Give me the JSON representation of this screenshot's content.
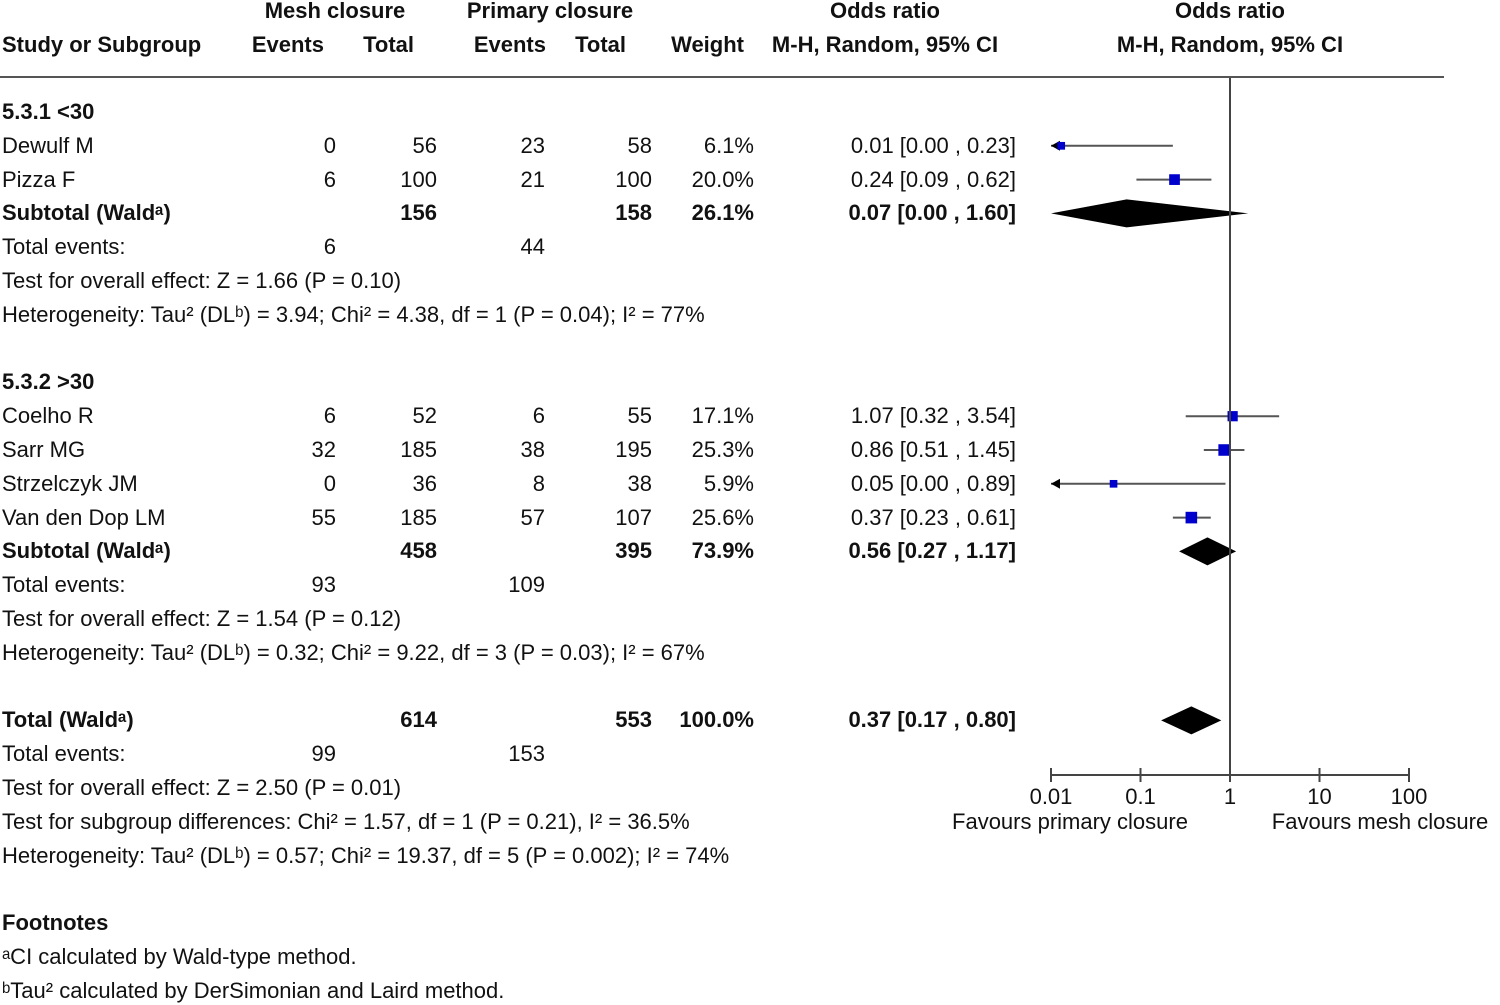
{
  "headers": {
    "study": "Study or Subgroup",
    "mesh_group": "Mesh closure",
    "primary_group": "Primary closure",
    "events": "Events",
    "total": "Total",
    "weight": "Weight",
    "or_title": "Odds ratio",
    "or_method": "M-H, Random, 95% CI",
    "plot_title": "Odds ratio",
    "plot_method": "M-H, Random, 95% CI"
  },
  "groups": [
    {
      "label": "5.3.1 <30",
      "studies": [
        {
          "name": "Dewulf M",
          "e1": "0",
          "n1": "56",
          "e2": "23",
          "n2": "58",
          "weight": "6.1%",
          "ci_text": "0.01 [0.00 , 0.23]",
          "or": 0.013,
          "lo": 0.0,
          "hi": 0.23,
          "w": 6.1
        },
        {
          "name": "Pizza F",
          "e1": "6",
          "n1": "100",
          "e2": "21",
          "n2": "100",
          "weight": "20.0%",
          "ci_text": "0.24 [0.09 , 0.62]",
          "or": 0.24,
          "lo": 0.09,
          "hi": 0.62,
          "w": 20.0
        }
      ],
      "subtotal": {
        "label": "Subtotal (Waldᵃ)",
        "n1": "156",
        "n2": "158",
        "weight": "26.1%",
        "ci_text": "0.07 [0.00 , 1.60]",
        "or": 0.07,
        "lo": 0.0,
        "hi": 1.6
      },
      "total_events": {
        "label": "Total events:",
        "e1": "6",
        "e2": "44"
      },
      "overall_effect": "Test for overall effect: Z = 1.66 (P = 0.10)",
      "heterogeneity": "Heterogeneity: Tau² (DLᵇ) = 3.94; Chi² = 4.38, df = 1 (P = 0.04); I² = 77%"
    },
    {
      "label": "5.3.2 >30",
      "studies": [
        {
          "name": "Coelho R",
          "e1": "6",
          "n1": "52",
          "e2": "6",
          "n2": "55",
          "weight": "17.1%",
          "ci_text": "1.07 [0.32 , 3.54]",
          "or": 1.07,
          "lo": 0.32,
          "hi": 3.54,
          "w": 17.1
        },
        {
          "name": "Sarr MG",
          "e1": "32",
          "n1": "185",
          "e2": "38",
          "n2": "195",
          "weight": "25.3%",
          "ci_text": "0.86 [0.51 , 1.45]",
          "or": 0.86,
          "lo": 0.51,
          "hi": 1.45,
          "w": 25.3
        },
        {
          "name": "Strzelczyk JM",
          "e1": "0",
          "n1": "36",
          "e2": "8",
          "n2": "38",
          "weight": "5.9%",
          "ci_text": "0.05 [0.00 , 0.89]",
          "or": 0.05,
          "lo": 0.0,
          "hi": 0.89,
          "w": 5.9
        },
        {
          "name": "Van den Dop LM",
          "e1": "55",
          "n1": "185",
          "e2": "57",
          "n2": "107",
          "weight": "25.6%",
          "ci_text": "0.37 [0.23 , 0.61]",
          "or": 0.37,
          "lo": 0.23,
          "hi": 0.61,
          "w": 25.6
        }
      ],
      "subtotal": {
        "label": "Subtotal (Waldᵃ)",
        "n1": "458",
        "n2": "395",
        "weight": "73.9%",
        "ci_text": "0.56 [0.27 , 1.17]",
        "or": 0.56,
        "lo": 0.27,
        "hi": 1.17
      },
      "total_events": {
        "label": "Total events:",
        "e1": "93",
        "e2": "109"
      },
      "overall_effect": "Test for overall effect: Z = 1.54 (P = 0.12)",
      "heterogeneity": "Heterogeneity: Tau² (DLᵇ) = 0.32; Chi² = 9.22, df = 3 (P = 0.03); I² = 67%"
    }
  ],
  "total": {
    "label": "Total (Waldᵃ)",
    "n1": "614",
    "n2": "553",
    "weight": "100.0%",
    "ci_text": "0.37 [0.17 , 0.80]",
    "or": 0.37,
    "lo": 0.17,
    "hi": 0.8,
    "total_events": {
      "label": "Total events:",
      "e1": "99",
      "e2": "153"
    },
    "overall_effect": "Test for overall effect: Z = 2.50 (P = 0.01)",
    "subgroup_diff": "Test for subgroup differences: Chi² = 1.57, df = 1 (P = 0.21), I² = 36.5%",
    "heterogeneity": "Heterogeneity: Tau² (DLᵇ) = 0.57; Chi² = 19.37, df = 5 (P = 0.002); I² = 74%"
  },
  "footnotes": {
    "title": "Footnotes",
    "items": [
      "ᵃCI calculated by Wald-type method.",
      "ᵇTau² calculated by DerSimonian and Laird method."
    ]
  },
  "chart_data": {
    "type": "forest",
    "x_scale": "log",
    "xlim": [
      0.01,
      100
    ],
    "ticks": [
      "0.01",
      "0.1",
      "1",
      "10",
      "100"
    ],
    "tick_values": [
      0.01,
      0.1,
      1,
      10,
      100
    ],
    "null_line": 1,
    "left_label": "Favours primary closure",
    "right_label": "Favours mesh closure"
  },
  "colors": {
    "marker": "#0000cc",
    "diamond": "#000000",
    "line": "#555555"
  }
}
